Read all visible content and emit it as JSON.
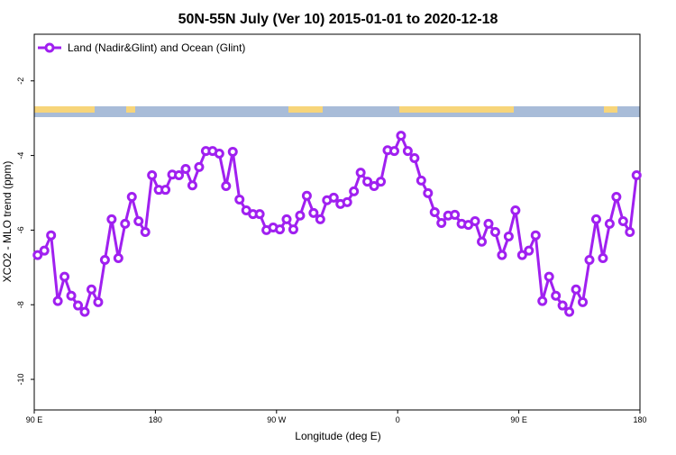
{
  "chart_data": {
    "type": "line",
    "title": "50N-55N July (Ver 10)   2015-01-01 to 2020-12-18",
    "x_label": "Longitude (deg E)",
    "y_label": "XCO2 - MLO trend (ppm)",
    "xlim": [
      90,
      540
    ],
    "xticks": [
      {
        "value": 90,
        "label": "90 E"
      },
      {
        "value": 180,
        "label": "180"
      },
      {
        "value": 270,
        "label": "90 W"
      },
      {
        "value": 360,
        "label": "0"
      },
      {
        "value": 450,
        "label": "90 E"
      },
      {
        "value": 540,
        "label": "180"
      }
    ],
    "ylim": [
      -10.82,
      -0.75
    ],
    "yticks": [
      -2,
      -4,
      -6,
      -8,
      -10
    ],
    "legend": "top-left",
    "x": [
      92.5,
      97.5,
      102.5,
      107.5,
      112.5,
      117.5,
      122.5,
      127.5,
      132.5,
      137.5,
      142.5,
      147.5,
      152.5,
      157.5,
      162.5,
      167.5,
      172.5,
      177.5,
      182.5,
      187.5,
      192.5,
      197.5,
      202.5,
      207.5,
      212.5,
      217.5,
      222.5,
      227.5,
      232.5,
      237.5,
      242.5,
      247.5,
      252.5,
      257.5,
      262.5,
      267.5,
      272.5,
      277.5,
      282.5,
      287.5,
      292.5,
      297.5,
      302.5,
      307.5,
      312.5,
      317.5,
      322.5,
      327.5,
      332.5,
      337.5,
      342.5,
      347.5,
      352.5,
      357.5,
      362.5,
      367.5,
      372.5,
      377.5,
      382.5,
      387.5,
      392.5,
      397.5,
      402.5,
      407.5,
      412.5,
      417.5,
      422.5,
      427.5,
      432.5,
      437.5,
      442.5,
      447.5,
      452.5,
      457.5,
      462.5,
      467.5,
      472.5,
      477.5,
      482.5,
      487.5,
      492.5,
      497.5,
      502.5,
      507.5,
      512.5,
      517.5,
      522.5,
      527.5,
      532.5,
      537.5
    ],
    "series": [
      {
        "name": "Land (Nadir&Glint) and Ocean (Glint)",
        "color": "#a020f0",
        "values": [
          -6.67,
          -6.55,
          -6.14,
          -7.9,
          -7.25,
          -7.76,
          -8.02,
          -8.19,
          -7.59,
          -7.93,
          -6.8,
          -5.71,
          -6.75,
          -5.83,
          -5.11,
          -5.76,
          -6.05,
          -4.53,
          -4.92,
          -4.92,
          -4.51,
          -4.53,
          -4.36,
          -4.8,
          -4.31,
          -3.88,
          -3.88,
          -3.95,
          -4.82,
          -3.9,
          -5.18,
          -5.47,
          -5.57,
          -5.57,
          -6.0,
          -5.93,
          -5.98,
          -5.71,
          -5.98,
          -5.61,
          -5.08,
          -5.54,
          -5.71,
          -5.2,
          -5.13,
          -5.3,
          -5.25,
          -4.96,
          -4.46,
          -4.7,
          -4.82,
          -4.7,
          -3.86,
          -3.88,
          -3.47,
          -3.88,
          -4.07,
          -4.67,
          -5.01,
          -5.52,
          -5.81,
          -5.61,
          -5.59,
          -5.83,
          -5.86,
          -5.76,
          -6.31,
          -5.83,
          -6.05,
          -6.67,
          -6.17,
          -5.47,
          -6.67,
          -6.55,
          -6.14,
          -7.9,
          -7.25,
          -7.76,
          -8.02,
          -8.19,
          -7.59,
          -7.93,
          -6.8,
          -5.71,
          -6.75,
          -5.83,
          -5.11,
          -5.76,
          -6.05,
          -4.53
        ]
      }
    ]
  }
}
